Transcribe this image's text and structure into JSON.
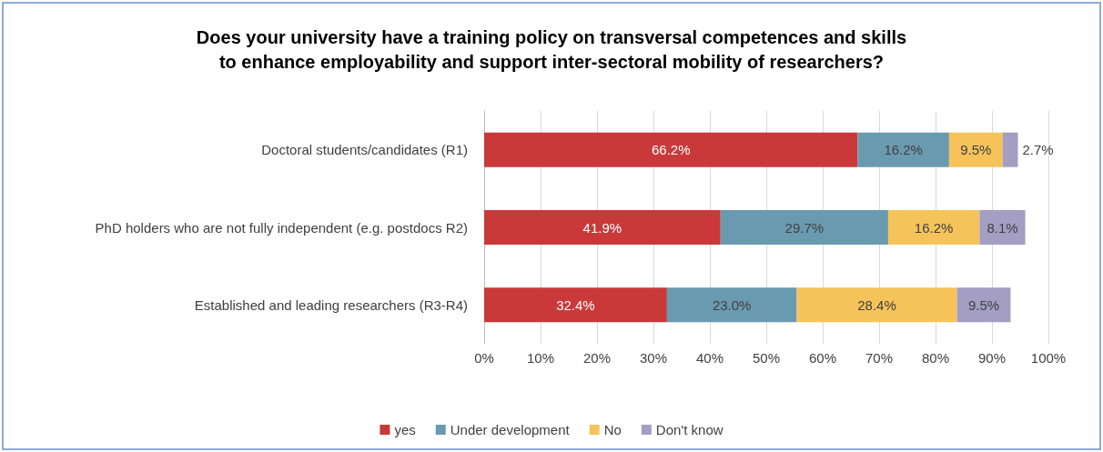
{
  "chart_data": {
    "type": "bar",
    "orientation": "horizontal",
    "stacked": true,
    "title": "Does your university have a training policy on transversal competences and skills\nto enhance employability and support inter-sectoral mobility of researchers?",
    "categories": [
      "Doctoral students/candidates (R1)",
      "PhD holders who are not fully independent (e.g. postdocs R2)",
      "Established and leading researchers (R3-R4)"
    ],
    "series": [
      {
        "name": "yes",
        "color": "#c9393a",
        "values": [
          66.2,
          41.9,
          32.4
        ],
        "value_labels": [
          "66.2%",
          "41.9%",
          "32.4%"
        ]
      },
      {
        "name": "Under development",
        "color": "#6a9ab0",
        "values": [
          16.2,
          29.7,
          23.0
        ],
        "value_labels": [
          "16.2%",
          "29.7%",
          "23.0%"
        ]
      },
      {
        "name": "No",
        "color": "#f6c35a",
        "values": [
          9.5,
          16.2,
          28.4
        ],
        "value_labels": [
          "9.5%",
          "16.2%",
          "28.4%"
        ]
      },
      {
        "name": "Don't know",
        "color": "#a39ec2",
        "values": [
          2.7,
          8.1,
          9.5
        ],
        "value_labels": [
          "2.7%",
          "8.1%",
          "9.5%"
        ]
      }
    ],
    "xlim": [
      0,
      100
    ],
    "xticks": [
      {
        "value": 0,
        "label": "0%"
      },
      {
        "value": 10,
        "label": "10%"
      },
      {
        "value": 20,
        "label": "20%"
      },
      {
        "value": 30,
        "label": "30%"
      },
      {
        "value": 40,
        "label": "40%"
      },
      {
        "value": 50,
        "label": "50%"
      },
      {
        "value": 60,
        "label": "60%"
      },
      {
        "value": 70,
        "label": "70%"
      },
      {
        "value": 80,
        "label": "80%"
      },
      {
        "value": 90,
        "label": "90%"
      },
      {
        "value": 100,
        "label": "100%"
      }
    ],
    "grid": "x",
    "legend": "bottom"
  }
}
